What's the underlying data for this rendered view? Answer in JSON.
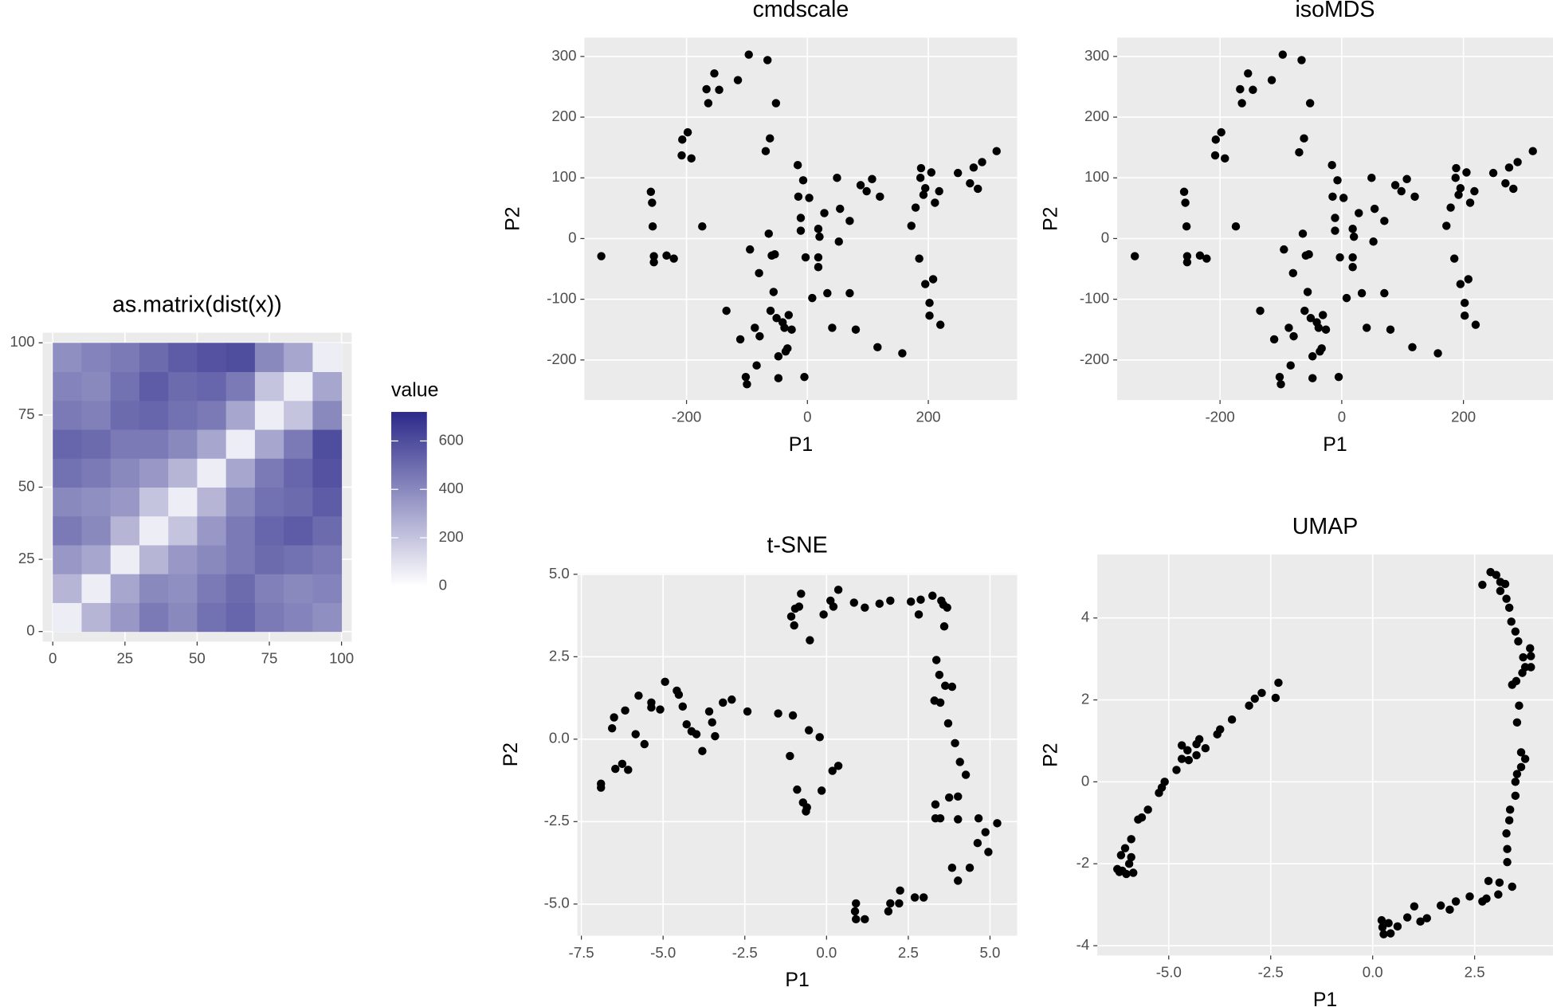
{
  "chart_data": [
    {
      "type": "heatmap",
      "title": "as.matrix(dist(x))",
      "legend_title": "value",
      "bins": [
        0,
        10,
        20,
        30,
        40,
        50,
        60,
        70,
        80,
        90,
        100
      ],
      "matrix": [
        [
          60,
          250,
          350,
          450,
          400,
          480,
          520,
          450,
          420,
          380
        ],
        [
          250,
          60,
          300,
          400,
          380,
          450,
          500,
          430,
          400,
          420
        ],
        [
          350,
          300,
          60,
          250,
          350,
          400,
          450,
          500,
          480,
          450
        ],
        [
          450,
          400,
          250,
          60,
          200,
          350,
          450,
          520,
          550,
          500
        ],
        [
          400,
          380,
          350,
          200,
          60,
          250,
          400,
          480,
          500,
          550
        ],
        [
          480,
          450,
          400,
          350,
          250,
          60,
          300,
          450,
          520,
          580
        ],
        [
          520,
          500,
          450,
          450,
          400,
          300,
          60,
          300,
          450,
          600
        ],
        [
          450,
          430,
          500,
          520,
          480,
          450,
          300,
          60,
          200,
          400
        ],
        [
          420,
          400,
          480,
          550,
          500,
          520,
          450,
          200,
          60,
          300
        ],
        [
          380,
          420,
          450,
          500,
          550,
          580,
          600,
          400,
          300,
          60
        ]
      ],
      "colors": [
        "#ffffff",
        "#2c2a8a"
      ],
      "clim": [
        0,
        720
      ],
      "cticks": [
        0,
        200,
        400,
        600
      ],
      "xlim": [
        -3.5,
        103.5
      ],
      "ylim": [
        -3.5,
        103.5
      ],
      "xticks": [
        0,
        25,
        50,
        75,
        100
      ],
      "yticks": [
        0,
        25,
        50,
        75,
        100
      ],
      "grid": true
    },
    {
      "type": "scatter",
      "title": "cmdscale",
      "xlabel": "P1",
      "ylabel": "P2",
      "color": "#000000",
      "x": [
        -341,
        -259,
        -257,
        -256,
        -254,
        -254,
        -233,
        -221,
        -207,
        -198,
        -208,
        -192,
        -174,
        -167,
        -164,
        -154,
        -146,
        -115,
        -97,
        -66,
        -52,
        -62,
        -69,
        -134,
        -111,
        -102,
        -100,
        -87,
        -84,
        -79,
        -95,
        -80,
        -64,
        -61,
        -59,
        -54,
        -56,
        -51,
        -48,
        -48,
        -41,
        -38,
        -36,
        -33,
        -31,
        -26,
        -16,
        -15,
        -11,
        -11,
        -7,
        -3,
        -5,
        3,
        8,
        18,
        20,
        18,
        18,
        28,
        33,
        41,
        49,
        52,
        54,
        70,
        70,
        80,
        88,
        98,
        107,
        116,
        120,
        157,
        172,
        179,
        185,
        187,
        188,
        192,
        195,
        205,
        195,
        202,
        202,
        208,
        211,
        218,
        220,
        249,
        269,
        275,
        282,
        289,
        313
      ],
      "values": [
        -29,
        77,
        59,
        20,
        -29,
        -39,
        -28,
        -33,
        163,
        175,
        137,
        132,
        20,
        246,
        223,
        272,
        245,
        261,
        303,
        294,
        223,
        165,
        144,
        -119,
        -166,
        -228,
        -240,
        -147,
        -209,
        -161,
        -18,
        -57,
        8,
        -119,
        -28,
        -26,
        -88,
        -131,
        -230,
        -194,
        -138,
        -147,
        -186,
        -181,
        -126,
        -150,
        121,
        69,
        34,
        13,
        96,
        -31,
        -228,
        67,
        -98,
        16,
        3,
        -31,
        -47,
        42,
        -90,
        -147,
        100,
        -5,
        49,
        29,
        -90,
        -150,
        88,
        78,
        98,
        -179,
        69,
        -189,
        21,
        51,
        -33,
        100,
        116,
        72,
        -75,
        109,
        83,
        -106,
        -127,
        -67,
        59,
        78,
        -142,
        108,
        91,
        117,
        82,
        126,
        144
      ],
      "xlim": [
        -369,
        347
      ],
      "ylim": [
        -266,
        331
      ],
      "xticks": [
        -200,
        0,
        200
      ],
      "yticks": [
        -200,
        -100,
        0,
        100,
        200,
        300
      ],
      "grid": true
    },
    {
      "type": "scatter",
      "title": "isoMDS",
      "xlabel": "P1",
      "ylabel": "P2",
      "color": "#000000",
      "x": [
        -340,
        -259,
        -257,
        -255,
        -254,
        -254,
        -233,
        -222,
        -207,
        -198,
        -208,
        -192,
        -174,
        -167,
        -164,
        -154,
        -146,
        -115,
        -97,
        -66,
        -52,
        -62,
        -70,
        -134,
        -111,
        -102,
        -100,
        -87,
        -84,
        -79,
        -95,
        -80,
        -64,
        -61,
        -59,
        -54,
        -56,
        -51,
        -48,
        -48,
        -41,
        -38,
        -36,
        -33,
        -31,
        -26,
        -16,
        -15,
        -11,
        -11,
        -7,
        -3,
        -5,
        3,
        8,
        18,
        20,
        18,
        18,
        28,
        33,
        41,
        49,
        52,
        54,
        70,
        70,
        80,
        88,
        98,
        107,
        116,
        120,
        158,
        172,
        179,
        185,
        187,
        188,
        192,
        195,
        205,
        195,
        202,
        202,
        208,
        211,
        218,
        220,
        249,
        269,
        275,
        282,
        289,
        314
      ],
      "values": [
        -29,
        77,
        59,
        20,
        -29,
        -39,
        -28,
        -33,
        163,
        175,
        137,
        132,
        20,
        246,
        223,
        272,
        245,
        261,
        303,
        294,
        223,
        165,
        142,
        -119,
        -166,
        -228,
        -240,
        -147,
        -209,
        -161,
        -18,
        -57,
        8,
        -119,
        -28,
        -26,
        -88,
        -131,
        -230,
        -194,
        -138,
        -147,
        -186,
        -181,
        -126,
        -150,
        121,
        69,
        34,
        13,
        96,
        -31,
        -228,
        67,
        -98,
        16,
        3,
        -31,
        -47,
        42,
        -90,
        -147,
        100,
        -5,
        49,
        29,
        -90,
        -150,
        88,
        78,
        98,
        -179,
        69,
        -189,
        21,
        51,
        -33,
        100,
        116,
        72,
        -75,
        109,
        83,
        -106,
        -127,
        -67,
        59,
        78,
        -142,
        108,
        91,
        117,
        82,
        126,
        144
      ],
      "xlim": [
        -369,
        347
      ],
      "ylim": [
        -266,
        331
      ],
      "xticks": [
        -200,
        0,
        200
      ],
      "yticks": [
        -200,
        -100,
        0,
        100,
        200,
        300
      ],
      "grid": true
    },
    {
      "type": "scatter",
      "title": "t-SNE",
      "xlabel": "P1",
      "ylabel": "P2",
      "color": "#000000",
      "x": [
        -6.9,
        -6.9,
        -6.56,
        -6.5,
        -6.46,
        -6.25,
        -6.16,
        -6.07,
        -5.84,
        -5.75,
        -5.57,
        -5.36,
        -5.36,
        -5.09,
        -4.94,
        -4.58,
        -4.52,
        -4.4,
        -4.28,
        -4.13,
        -3.98,
        -3.8,
        -3.59,
        -3.5,
        -3.41,
        -3.17,
        -2.9,
        -2.42,
        -1.48,
        -1.03,
        -1.12,
        -0.9,
        -0.72,
        -0.63,
        -0.6,
        -0.54,
        -0.21,
        -0.15,
        0.18,
        0.36,
        -1.08,
        -0.99,
        -0.96,
        -0.84,
        -0.78,
        -0.51,
        -0.09,
        0.12,
        0.21,
        0.36,
        0.84,
        1.17,
        1.62,
        1.95,
        2.58,
        2.82,
        2.88,
        3.24,
        3.51,
        3.57,
        3.69,
        3.6,
        3.36,
        3.45,
        3.63,
        3.84,
        3.3,
        3.48,
        3.72,
        3.93,
        4.08,
        4.26,
        4.02,
        3.75,
        3.33,
        3.33,
        3.48,
        4.02,
        4.65,
        5.22,
        4.86,
        4.62,
        4.95,
        4.38,
        3.84,
        4.02,
        2.97,
        2.7,
        2.25,
        2.22,
        1.95,
        1.89,
        1.17,
        0.9,
        0.87,
        0.9
      ],
      "values": [
        -1.35,
        -1.47,
        0.33,
        0.66,
        -0.9,
        -0.75,
        0.87,
        -0.93,
        0.15,
        1.32,
        -0.15,
        1.11,
        0.96,
        0.9,
        1.74,
        1.47,
        1.35,
        0.99,
        0.45,
        0.24,
        0.15,
        -0.36,
        0.84,
        0.51,
        0.09,
        1.11,
        1.2,
        0.84,
        0.78,
        0.72,
        -0.51,
        -1.53,
        -1.92,
        -2.19,
        -2.07,
        0.27,
        0.06,
        -1.56,
        -0.96,
        -0.81,
        3.72,
        3.45,
        3.96,
        4.02,
        4.41,
        3.0,
        3.78,
        4.2,
        4.02,
        4.53,
        4.14,
        3.99,
        4.11,
        4.2,
        4.17,
        3.78,
        4.23,
        4.35,
        4.2,
        4.08,
        3.99,
        3.42,
        2.4,
        1.95,
        1.62,
        1.59,
        1.17,
        1.11,
        0.48,
        -0.12,
        -0.69,
        -1.08,
        -1.74,
        -1.77,
        -1.98,
        -2.4,
        -2.4,
        -2.43,
        -2.4,
        -2.55,
        -2.82,
        -3.15,
        -3.42,
        -3.9,
        -3.9,
        -4.29,
        -4.8,
        -4.8,
        -4.59,
        -4.98,
        -4.98,
        -5.22,
        -5.46,
        -4.98,
        -5.22,
        -5.46
      ],
      "xlim": [
        -7.62,
        5.83
      ],
      "ylim": [
        -5.96,
        5.03
      ],
      "xticks": [
        {
          "value": -7.5,
          "label": "-7.5"
        },
        {
          "value": -5,
          "label": "-5.0"
        },
        {
          "value": -2.5,
          "label": "-2.5"
        },
        {
          "value": 0,
          "label": "0.0"
        },
        {
          "value": 2.5,
          "label": "2.5"
        },
        {
          "value": 5,
          "label": "5.0"
        }
      ],
      "yticks": [
        {
          "value": -5,
          "label": "-5.0"
        },
        {
          "value": -2.5,
          "label": "-2.5"
        },
        {
          "value": 0,
          "label": "0.0"
        },
        {
          "value": 2.5,
          "label": "2.5"
        },
        {
          "value": 5,
          "label": "5.0"
        }
      ],
      "grid": true
    },
    {
      "type": "scatter",
      "title": "UMAP",
      "xlabel": "P1",
      "ylabel": "P2",
      "color": "#000000",
      "x": [
        -2.31,
        -2.38,
        -2.72,
        -2.89,
        -3.03,
        -3.45,
        -3.74,
        -3.81,
        -4.1,
        -4.25,
        -4.32,
        -4.32,
        -4.54,
        -4.51,
        -4.68,
        -4.68,
        -4.81,
        -5.1,
        -5.17,
        -5.24,
        -5.51,
        -5.66,
        -5.75,
        -5.92,
        -6.07,
        -6.17,
        -5.92,
        -6.14,
        -5.97,
        -6.21,
        -6.04,
        -5.87,
        -6.26,
        2.69,
        2.89,
        3.03,
        3.13,
        3.25,
        3.13,
        3.28,
        3.35,
        3.4,
        3.5,
        3.57,
        3.86,
        3.69,
        3.88,
        3.88,
        3.74,
        3.67,
        3.52,
        3.42,
        3.59,
        3.54,
        3.64,
        3.74,
        3.64,
        3.54,
        3.5,
        3.5,
        3.37,
        3.35,
        3.28,
        3.3,
        3.3,
        3.42,
        2.84,
        3.11,
        3.08,
        2.79,
        2.69,
        2.38,
        2.04,
        1.89,
        1.67,
        1.33,
        1.17,
        1.02,
        0.85,
        0.39,
        0.22,
        0.24,
        0.27,
        0.61,
        0.44
      ],
      "values": [
        2.42,
        2.05,
        2.17,
        2.03,
        1.86,
        1.52,
        1.28,
        1.16,
        0.82,
        1.04,
        0.92,
        0.65,
        0.77,
        0.53,
        0.89,
        0.56,
        0.29,
        0.0,
        -0.14,
        -0.27,
        -0.68,
        -0.87,
        -0.92,
        -1.4,
        -1.62,
        -1.79,
        -1.84,
        -2.17,
        -2.0,
        -2.2,
        -2.25,
        -2.22,
        -2.13,
        4.81,
        5.12,
        5.05,
        4.88,
        4.83,
        4.66,
        4.47,
        4.25,
        3.91,
        3.67,
        3.43,
        3.26,
        3.04,
        3.07,
        2.8,
        2.8,
        2.66,
        2.46,
        2.37,
        1.86,
        1.45,
        0.72,
        0.56,
        0.36,
        0.19,
        0.0,
        -0.34,
        -0.68,
        -0.94,
        -1.26,
        -1.64,
        -1.96,
        -2.56,
        -2.42,
        -2.46,
        -2.75,
        -2.85,
        -2.92,
        -2.8,
        -2.92,
        -3.12,
        -3.02,
        -3.33,
        -3.41,
        -3.04,
        -3.31,
        -3.45,
        -3.38,
        -3.55,
        -3.72,
        -3.53,
        -3.7
      ],
      "xlim": [
        -6.75,
        4.42
      ],
      "ylim": [
        -4.24,
        5.55
      ],
      "xticks": [
        {
          "value": -5,
          "label": "-5.0"
        },
        {
          "value": -2.5,
          "label": "-2.5"
        },
        {
          "value": 0,
          "label": "0.0"
        },
        {
          "value": 2.5,
          "label": "2.5"
        }
      ],
      "yticks": [
        -4,
        -2,
        0,
        2,
        4
      ],
      "grid": true
    }
  ]
}
